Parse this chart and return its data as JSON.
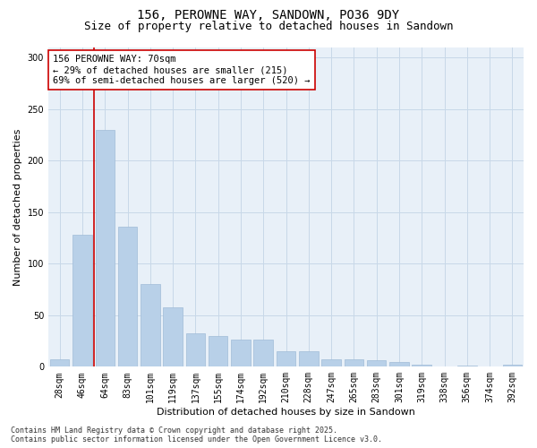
{
  "title_line1": "156, PEROWNE WAY, SANDOWN, PO36 9DY",
  "title_line2": "Size of property relative to detached houses in Sandown",
  "xlabel": "Distribution of detached houses by size in Sandown",
  "ylabel": "Number of detached properties",
  "categories": [
    "28sqm",
    "46sqm",
    "64sqm",
    "83sqm",
    "101sqm",
    "119sqm",
    "137sqm",
    "155sqm",
    "174sqm",
    "192sqm",
    "210sqm",
    "228sqm",
    "247sqm",
    "265sqm",
    "283sqm",
    "301sqm",
    "319sqm",
    "338sqm",
    "356sqm",
    "374sqm",
    "392sqm"
  ],
  "values": [
    7,
    128,
    230,
    136,
    80,
    58,
    32,
    30,
    26,
    26,
    15,
    15,
    7,
    7,
    6,
    5,
    2,
    0,
    1,
    0,
    2
  ],
  "bar_color": "#b8d0e8",
  "bar_edge_color": "#a0bcd8",
  "vline_x": 1.5,
  "vline_color": "#cc0000",
  "annotation_text": "156 PEROWNE WAY: 70sqm\n← 29% of detached houses are smaller (215)\n69% of semi-detached houses are larger (520) →",
  "annotation_box_color": "#ffffff",
  "annotation_box_edge": "#cc0000",
  "ylim": [
    0,
    310
  ],
  "yticks": [
    0,
    50,
    100,
    150,
    200,
    250,
    300
  ],
  "grid_color": "#c8d8e8",
  "bg_color": "#e8f0f8",
  "footer_text": "Contains HM Land Registry data © Crown copyright and database right 2025.\nContains public sector information licensed under the Open Government Licence v3.0.",
  "title_fontsize": 10,
  "subtitle_fontsize": 9,
  "label_fontsize": 8,
  "tick_fontsize": 7,
  "annotation_fontsize": 7.5,
  "footer_fontsize": 6
}
